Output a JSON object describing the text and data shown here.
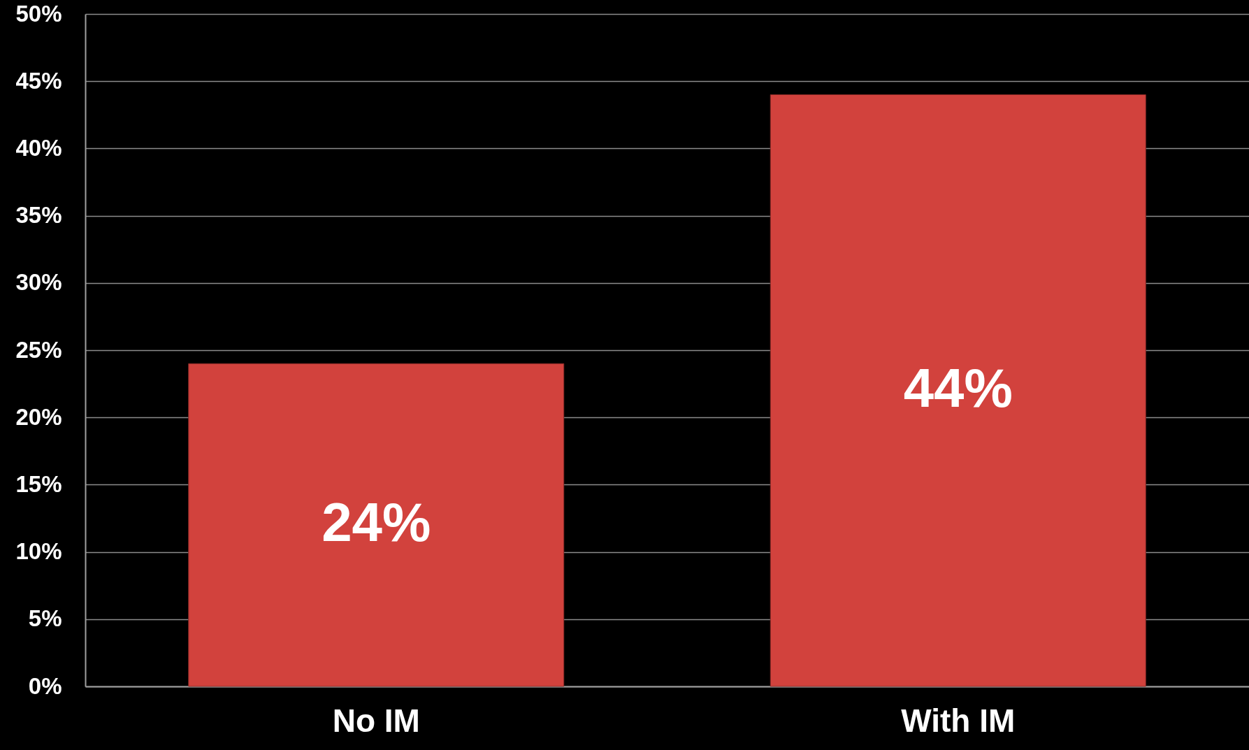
{
  "chart_data": {
    "type": "bar",
    "categories": [
      "No IM",
      "With IM"
    ],
    "values": [
      24,
      44
    ],
    "value_labels": [
      "24%",
      "44%"
    ],
    "color": "#d2423d",
    "ylim": [
      0,
      50
    ],
    "yticks": [
      {
        "value": 0,
        "label": "0%"
      },
      {
        "value": 5,
        "label": "5%"
      },
      {
        "value": 10,
        "label": "10%"
      },
      {
        "value": 15,
        "label": "15%"
      },
      {
        "value": 20,
        "label": "20%"
      },
      {
        "value": 25,
        "label": "25%"
      },
      {
        "value": 30,
        "label": "30%"
      },
      {
        "value": 35,
        "label": "35%"
      },
      {
        "value": 40,
        "label": "40%"
      },
      {
        "value": 45,
        "label": "45%"
      },
      {
        "value": 50,
        "label": "50%"
      }
    ],
    "grid": true
  }
}
